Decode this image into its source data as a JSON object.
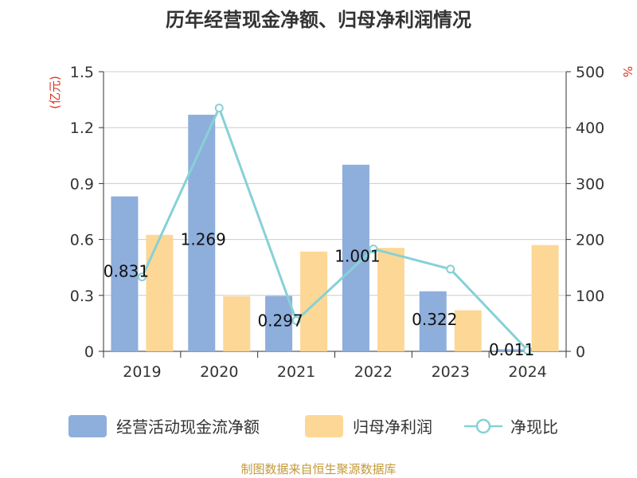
{
  "chart_data": {
    "type": "bar",
    "title": "历年经营现金净额、归母净利润情况",
    "categories": [
      "2019",
      "2020",
      "2021",
      "2022",
      "2023",
      "2024"
    ],
    "left_axis": {
      "unit": "(亿元)",
      "ylim": [
        0,
        1.5
      ],
      "ticks": [
        "0",
        "0.3",
        "0.6",
        "0.9",
        "1.2",
        "1.5"
      ]
    },
    "right_axis": {
      "unit": "%",
      "ylim": [
        0,
        500
      ],
      "ticks": [
        "0",
        "100",
        "200",
        "300",
        "400",
        "500"
      ]
    },
    "series": [
      {
        "name": "经营活动现金流净额",
        "kind": "bar",
        "axis": "left",
        "color": "#8eaedc",
        "values": [
          0.831,
          1.269,
          0.297,
          1.001,
          0.322,
          0.011
        ],
        "labels": [
          "0.831",
          "1.269",
          "0.297",
          "1.001",
          "0.322",
          "0.011"
        ]
      },
      {
        "name": "归母净利润",
        "kind": "bar",
        "axis": "left",
        "color": "#fdd796",
        "values": [
          0.625,
          0.295,
          0.535,
          0.555,
          0.22,
          0.57
        ]
      },
      {
        "name": "净现比",
        "kind": "line",
        "axis": "right",
        "color": "#86d1d6",
        "values": [
          133,
          435,
          55,
          183,
          147,
          2
        ]
      }
    ],
    "grid": true,
    "legend_position": "bottom"
  },
  "footer": {
    "source": "制图数据来自恒生聚源数据库"
  }
}
